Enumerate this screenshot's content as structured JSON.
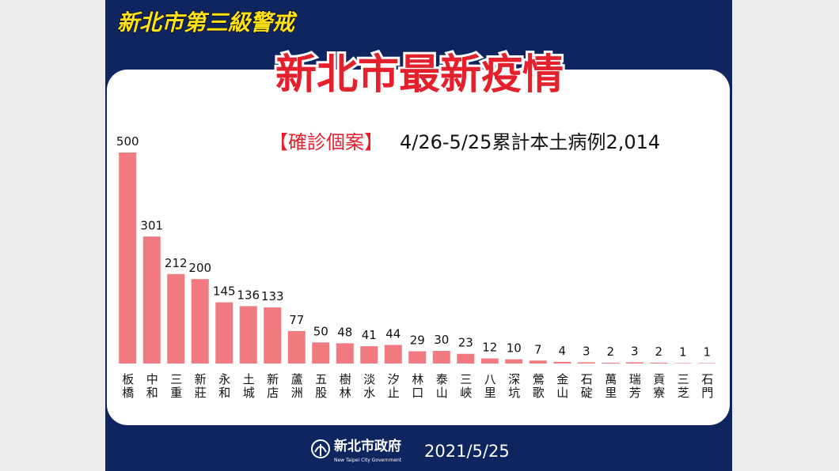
{
  "banner": "新北市第三級警戒",
  "heading": "新北市最新疫情",
  "chart_data": {
    "type": "bar",
    "subtitle_tag": "【確診個案】",
    "subtitle": "4/26-5/25累計本土病例2,014",
    "categories": [
      "板橋",
      "中和",
      "三重",
      "新莊",
      "永和",
      "土城",
      "新店",
      "蘆洲",
      "五股",
      "樹林",
      "淡水",
      "汐止",
      "林口",
      "泰山",
      "三峽",
      "八里",
      "深坑",
      "鶯歌",
      "金山",
      "石碇",
      "萬里",
      "瑞芳",
      "貢寮",
      "三芝",
      "石門"
    ],
    "values": [
      500,
      301,
      212,
      200,
      145,
      136,
      133,
      77,
      50,
      48,
      41,
      44,
      29,
      30,
      23,
      12,
      10,
      7,
      4,
      3,
      2,
      3,
      2,
      1,
      1
    ],
    "color": "#f07a80"
  },
  "footer": {
    "org": "新北市政府",
    "org_en": "New Taipei City Government",
    "date": "2021/5/25"
  }
}
